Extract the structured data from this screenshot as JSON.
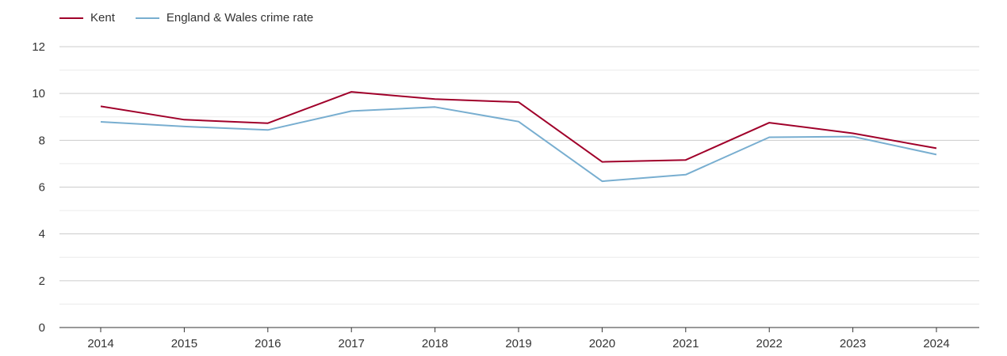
{
  "chart_data": {
    "type": "line",
    "x": [
      "2014",
      "2015",
      "2016",
      "2017",
      "2018",
      "2019",
      "2020",
      "2021",
      "2022",
      "2023",
      "2024"
    ],
    "series": [
      {
        "name": "Kent",
        "color": "#a0002a",
        "values": [
          9.45,
          8.88,
          8.73,
          10.07,
          9.76,
          9.63,
          7.08,
          7.16,
          8.75,
          8.3,
          7.66
        ]
      },
      {
        "name": "England & Wales crime rate",
        "color": "#78aed0",
        "values": [
          8.79,
          8.59,
          8.44,
          9.25,
          9.42,
          8.8,
          6.25,
          6.53,
          8.13,
          8.16,
          7.39
        ]
      }
    ],
    "ylim": [
      0,
      12
    ],
    "yticks": [
      "0",
      "2",
      "4",
      "6",
      "8",
      "10",
      "12"
    ],
    "grid": true,
    "legend_position": "top-left",
    "title": "",
    "xlabel": "",
    "ylabel": ""
  }
}
